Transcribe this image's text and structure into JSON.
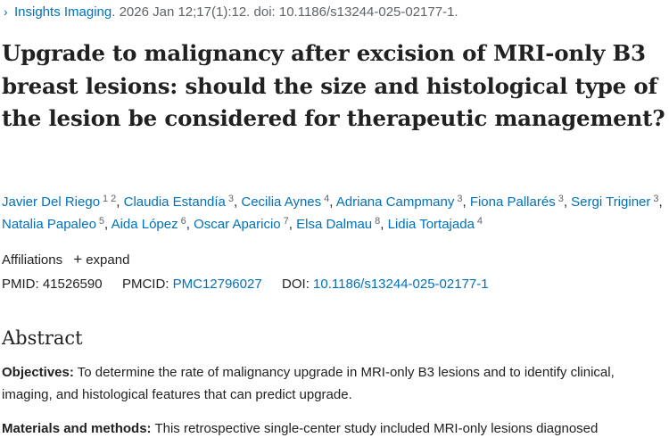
{
  "citation": {
    "journal": "Insights Imaging",
    "details": ". 2026 Jan 12;17(1):12. doi: 10.1186/s13244-025-02177-1."
  },
  "title": "Upgrade to malignancy after excision of MRI-only B3 breast lesions: should the size and histological type of the lesion be considered for therapeutic management?",
  "authors": [
    {
      "name": "Javier Del Riego",
      "affils": [
        "1",
        "2"
      ]
    },
    {
      "name": "Claudia Estandía",
      "affils": [
        "3"
      ]
    },
    {
      "name": "Cecilia Aynes",
      "affils": [
        "4"
      ]
    },
    {
      "name": "Adriana Campmany",
      "affils": [
        "3"
      ]
    },
    {
      "name": "Fiona Pallarés",
      "affils": [
        "3"
      ]
    },
    {
      "name": "Sergi Triginer",
      "affils": [
        "3"
      ]
    },
    {
      "name": "Natalia Papaleo",
      "affils": [
        "5"
      ]
    },
    {
      "name": "Aida López",
      "affils": [
        "6"
      ]
    },
    {
      "name": "Oscar Aparicio",
      "affils": [
        "7"
      ]
    },
    {
      "name": "Elsa Dalmau",
      "affils": [
        "8"
      ]
    },
    {
      "name": "Lidia Tortajada",
      "affils": [
        "4"
      ]
    }
  ],
  "affiliations": {
    "label": "Affiliations",
    "expand_label": "expand"
  },
  "identifiers": {
    "pmid_label": "PMID:",
    "pmid": "41526590",
    "pmcid_label": "PMCID:",
    "pmcid": "PMC12796027",
    "doi_label": "DOI:",
    "doi": "10.1186/s13244-025-02177-1"
  },
  "abstract": {
    "heading": "Abstract",
    "objectives_label": "Objectives:",
    "objectives_text": " To determine the rate of malignancy upgrade in MRI-only B3 lesions and to identify clinical, imaging, and histological features that can predict upgrade.",
    "methods_label": "Materials and methods:",
    "methods_text": " This retrospective single-center study included MRI-only lesions diagnosed"
  }
}
